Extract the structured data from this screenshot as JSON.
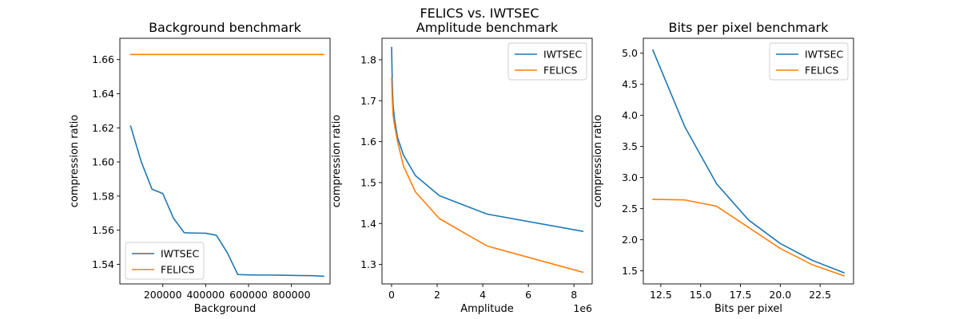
{
  "figure": {
    "suptitle": "FELICS vs. IWTSEC"
  },
  "colors": {
    "iwtsec": "#1f77b4",
    "felics": "#ff7f0e",
    "axes": "#000000",
    "background": "#ffffff"
  },
  "chart_data": [
    {
      "type": "line",
      "title": "Background benchmark",
      "xlabel": "Background",
      "ylabel": "compression ratio",
      "xlim": [
        0,
        980000
      ],
      "ylim": [
        1.5285,
        1.6725
      ],
      "xticks": [
        200000,
        400000,
        600000,
        800000
      ],
      "xtick_labels": [
        "200000",
        "400000",
        "600000",
        "800000"
      ],
      "yticks": [
        1.54,
        1.56,
        1.58,
        1.6,
        1.62,
        1.64,
        1.66
      ],
      "ytick_labels": [
        "1.54",
        "1.56",
        "1.58",
        "1.60",
        "1.62",
        "1.64",
        "1.66"
      ],
      "x_offset_label": "",
      "grid": false,
      "legend_position": "lower-left",
      "series": [
        {
          "name": "IWTSEC",
          "x": [
            50000,
            100000,
            150000,
            200000,
            250000,
            300000,
            350000,
            400000,
            450000,
            500000,
            550000,
            600000,
            650000,
            700000,
            750000,
            800000,
            850000,
            900000,
            950000
          ],
          "y": [
            1.621,
            1.6,
            1.584,
            1.5815,
            1.567,
            1.5585,
            1.5583,
            1.5582,
            1.557,
            1.547,
            1.534,
            1.5338,
            1.5337,
            1.5337,
            1.5336,
            1.5335,
            1.5334,
            1.5333,
            1.533
          ]
        },
        {
          "name": "FELICS",
          "x": [
            50000,
            950000
          ],
          "y": [
            1.663,
            1.663
          ]
        }
      ]
    },
    {
      "type": "line",
      "title": "Amplitude benchmark",
      "xlabel": "Amplitude",
      "ylabel": "compression ratio",
      "xlim": [
        -420000,
        8800000
      ],
      "ylim": [
        1.2525,
        1.8525
      ],
      "xticks": [
        0,
        2000000,
        4000000,
        6000000,
        8000000
      ],
      "xtick_labels": [
        "0",
        "2",
        "4",
        "6",
        "8"
      ],
      "yticks": [
        1.3,
        1.4,
        1.5,
        1.6,
        1.7,
        1.8
      ],
      "ytick_labels": [
        "1.3",
        "1.4",
        "1.5",
        "1.6",
        "1.7",
        "1.8"
      ],
      "x_offset_label": "1e6",
      "grid": false,
      "legend_position": "upper-right",
      "series": [
        {
          "name": "IWTSEC",
          "x": [
            1024,
            32768,
            65536,
            131072,
            262144,
            524288,
            1048576,
            2097152,
            4194304,
            8388608
          ],
          "y": [
            1.83,
            1.74,
            1.69,
            1.655,
            1.61,
            1.567,
            1.517,
            1.468,
            1.423,
            1.381
          ]
        },
        {
          "name": "FELICS",
          "x": [
            1024,
            32768,
            65536,
            131072,
            262144,
            524288,
            1048576,
            2097152,
            4194304,
            8388608
          ],
          "y": [
            1.755,
            1.7,
            1.665,
            1.64,
            1.6,
            1.54,
            1.477,
            1.412,
            1.345,
            1.281
          ]
        }
      ]
    },
    {
      "type": "line",
      "title": "Bits per pixel benchmark",
      "xlabel": "Bits per pixel",
      "ylabel": "compression ratio",
      "xlim": [
        11.4,
        24.6
      ],
      "ylim": [
        1.29,
        5.24
      ],
      "xticks": [
        12.5,
        15.0,
        17.5,
        20.0,
        22.5
      ],
      "xtick_labels": [
        "12.5",
        "15.0",
        "17.5",
        "20.0",
        "22.5"
      ],
      "yticks": [
        1.5,
        2.0,
        2.5,
        3.0,
        3.5,
        4.0,
        4.5,
        5.0
      ],
      "ytick_labels": [
        "1.5",
        "2.0",
        "2.5",
        "3.0",
        "3.5",
        "4.0",
        "4.5",
        "5.0"
      ],
      "x_offset_label": "",
      "grid": false,
      "legend_position": "upper-right",
      "series": [
        {
          "name": "IWTSEC",
          "x": [
            12,
            14,
            16,
            18,
            20,
            22,
            24
          ],
          "y": [
            5.05,
            3.82,
            2.9,
            2.32,
            1.94,
            1.67,
            1.47
          ]
        },
        {
          "name": "FELICS",
          "x": [
            12,
            14,
            16,
            18,
            20,
            22,
            24
          ],
          "y": [
            2.65,
            2.64,
            2.54,
            2.2,
            1.86,
            1.6,
            1.42
          ]
        }
      ]
    }
  ]
}
